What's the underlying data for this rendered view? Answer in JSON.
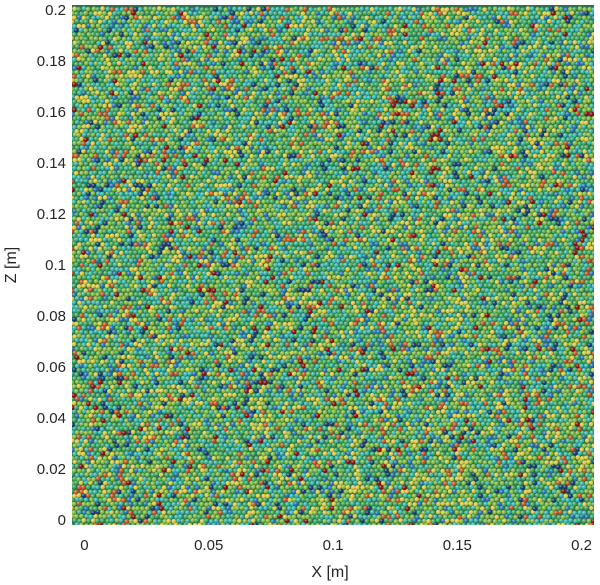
{
  "chart_data": {
    "type": "scatter",
    "description_marker": "dense packing of spherical particles colored by a scalar field",
    "xlabel": "X [m]",
    "ylabel": "Z [m]",
    "xlim": [
      -0.005,
      0.205
    ],
    "ylim": [
      -0.002,
      0.202
    ],
    "xticks": [
      0,
      0.05,
      0.1,
      0.15,
      0.2
    ],
    "xtick_labels": [
      "0",
      "0.05",
      "0.1",
      "0.15",
      "0.2"
    ],
    "yticks": [
      0,
      0.02,
      0.04,
      0.06,
      0.08,
      0.1,
      0.12,
      0.14,
      0.16,
      0.18,
      0.2
    ],
    "ytick_labels": [
      "0",
      "0.02",
      "0.04",
      "0.06",
      "0.08",
      "0.1",
      "0.12",
      "0.14",
      "0.16",
      "0.18",
      "0.2"
    ],
    "particle_region": {
      "x": [
        -0.005,
        0.205
      ],
      "z": [
        -0.002,
        0.202
      ]
    },
    "particle_diameter_m": 0.0019,
    "colormap": [
      "#08306b",
      "#1f6fb4",
      "#2fb3a8",
      "#3aa55a",
      "#7fb83a",
      "#d9c63a",
      "#c8501e",
      "#8b0000"
    ],
    "background_color": "#2f6f4a",
    "grid": false,
    "legend": "none"
  }
}
